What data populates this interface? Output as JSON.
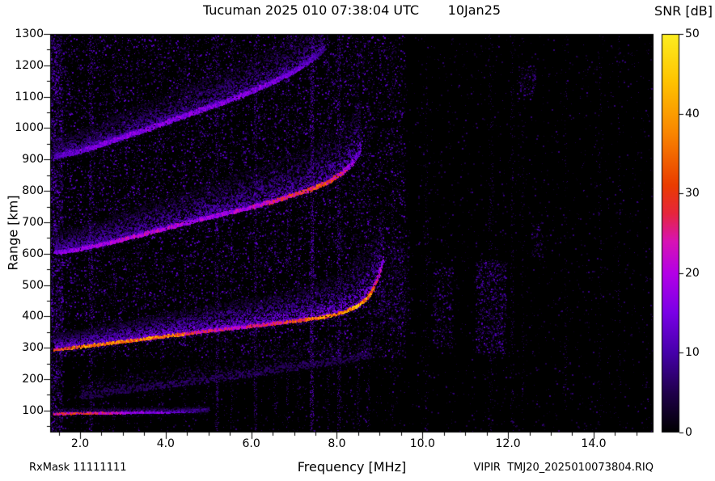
{
  "chart_data": {
    "type": "heatmap",
    "title": "Tucuman 2025 010 07:38:04 UTC       10Jan25",
    "station": "Tucuman",
    "timestamp_utc": "2025 010 07:38:04 UTC",
    "date": "10Jan25",
    "xlabel": "Frequency [MHz]",
    "ylabel": "Range [km]",
    "rx_mask": "RxMask 11111111",
    "instrument_file": "VIPIR  TMJ20_2025010073804.RIQ",
    "xlim": [
      1.3,
      15.4
    ],
    "ylim": [
      30,
      1300
    ],
    "xticks": [
      2,
      4,
      6,
      8,
      10,
      12,
      14
    ],
    "xtick_labels": [
      "2.0",
      "4.0",
      "6.0",
      "8.0",
      "10.0",
      "12.0",
      "14.0"
    ],
    "yticks": [
      100,
      200,
      300,
      400,
      500,
      600,
      700,
      800,
      900,
      1000,
      1100,
      1200,
      1300
    ],
    "grid": "dotted-black",
    "colorbar": {
      "label": "SNR [dB]",
      "min": 0,
      "max": 50,
      "ticks": [
        0,
        10,
        20,
        30,
        40,
        50
      ]
    },
    "palette_stops": [
      [
        0.0,
        "#000000"
      ],
      [
        0.1,
        "#20004c"
      ],
      [
        0.2,
        "#4600aa"
      ],
      [
        0.3,
        "#7a00e6"
      ],
      [
        0.4,
        "#b400e6"
      ],
      [
        0.48,
        "#d813b4"
      ],
      [
        0.55,
        "#e6263c"
      ],
      [
        0.62,
        "#ea3c00"
      ],
      [
        0.75,
        "#f98500"
      ],
      [
        0.88,
        "#ffc300"
      ],
      [
        1.0,
        "#fcee21"
      ]
    ],
    "seed": 20250110,
    "noise_regions": [
      {
        "x": [
          1.3,
          9.6
        ],
        "y": [
          270,
          1295
        ],
        "density": 0.085,
        "snr": [
          2,
          13
        ]
      },
      {
        "x": [
          1.3,
          9.6
        ],
        "y": [
          30,
          270
        ],
        "density": 0.018,
        "snr": [
          2,
          9
        ]
      },
      {
        "x": [
          9.6,
          15.4
        ],
        "y": [
          30,
          1295
        ],
        "density": 0.012,
        "snr": [
          2,
          8
        ]
      },
      {
        "x": [
          10.25,
          10.7
        ],
        "y": [
          300,
          560
        ],
        "density": 0.1,
        "snr": [
          3,
          11
        ]
      },
      {
        "x": [
          11.25,
          11.95
        ],
        "y": [
          280,
          580
        ],
        "density": 0.16,
        "snr": [
          3,
          12
        ]
      },
      {
        "x": [
          12.55,
          12.8
        ],
        "y": [
          590,
          700
        ],
        "density": 0.12,
        "snr": [
          3,
          10
        ]
      },
      {
        "x": [
          12.2,
          12.65
        ],
        "y": [
          1090,
          1200
        ],
        "density": 0.1,
        "snr": [
          3,
          10
        ]
      },
      {
        "x": [
          8.9,
          9.7
        ],
        "y": [
          350,
          640
        ],
        "density": 0.12,
        "snr": [
          2,
          10
        ]
      },
      {
        "x": [
          1.3,
          1.6
        ],
        "y": [
          30,
          1295
        ],
        "density": 0.22,
        "snr": [
          3,
          13
        ]
      }
    ],
    "rfi_lines": [
      {
        "mhz": 2.25,
        "half_width_mhz": 0.04,
        "density": 0.3,
        "snr": [
          3,
          13
        ],
        "y": [
          35,
          1295
        ]
      },
      {
        "mhz": 2.55,
        "half_width_mhz": 0.03,
        "density": 0.08,
        "snr": [
          2,
          9
        ],
        "y": [
          35,
          1295
        ]
      },
      {
        "mhz": 2.8,
        "half_width_mhz": 0.03,
        "density": 0.14,
        "snr": [
          2,
          10
        ],
        "y": [
          35,
          1295
        ]
      },
      {
        "mhz": 3.1,
        "half_width_mhz": 0.03,
        "density": 0.08,
        "snr": [
          2,
          9
        ],
        "y": [
          35,
          1295
        ]
      },
      {
        "mhz": 3.35,
        "half_width_mhz": 0.03,
        "density": 0.14,
        "snr": [
          2,
          10
        ],
        "y": [
          35,
          1295
        ]
      },
      {
        "mhz": 3.9,
        "half_width_mhz": 0.03,
        "density": 0.09,
        "snr": [
          2,
          9
        ],
        "y": [
          35,
          1295
        ]
      },
      {
        "mhz": 4.45,
        "half_width_mhz": 0.03,
        "density": 0.13,
        "snr": [
          2,
          10
        ],
        "y": [
          35,
          1295
        ]
      },
      {
        "mhz": 4.95,
        "half_width_mhz": 0.03,
        "density": 0.08,
        "snr": [
          2,
          9
        ],
        "y": [
          35,
          1295
        ]
      },
      {
        "mhz": 5.2,
        "half_width_mhz": 0.035,
        "density": 0.28,
        "snr": [
          3,
          12
        ],
        "y": [
          35,
          1295
        ]
      },
      {
        "mhz": 5.55,
        "half_width_mhz": 0.03,
        "density": 0.16,
        "snr": [
          2,
          10
        ],
        "y": [
          35,
          1295
        ]
      },
      {
        "mhz": 6.1,
        "half_width_mhz": 0.035,
        "density": 0.28,
        "snr": [
          3,
          12
        ],
        "y": [
          35,
          1295
        ]
      },
      {
        "mhz": 6.55,
        "half_width_mhz": 0.03,
        "density": 0.13,
        "snr": [
          2,
          10
        ],
        "y": [
          35,
          1295
        ]
      },
      {
        "mhz": 6.85,
        "half_width_mhz": 0.03,
        "density": 0.18,
        "snr": [
          2,
          10
        ],
        "y": [
          35,
          1295
        ]
      },
      {
        "mhz": 7.1,
        "half_width_mhz": 0.03,
        "density": 0.1,
        "snr": [
          2,
          9
        ],
        "y": [
          35,
          1295
        ]
      },
      {
        "mhz": 7.42,
        "half_width_mhz": 0.045,
        "density": 0.4,
        "snr": [
          4,
          15
        ],
        "y": [
          35,
          1295
        ]
      },
      {
        "mhz": 7.8,
        "half_width_mhz": 0.03,
        "density": 0.13,
        "snr": [
          2,
          10
        ],
        "y": [
          35,
          1295
        ]
      },
      {
        "mhz": 8.05,
        "half_width_mhz": 0.04,
        "density": 0.3,
        "snr": [
          3,
          12
        ],
        "y": [
          35,
          1295
        ]
      },
      {
        "mhz": 8.5,
        "half_width_mhz": 0.03,
        "density": 0.16,
        "snr": [
          2,
          10
        ],
        "y": [
          35,
          1295
        ]
      },
      {
        "mhz": 8.75,
        "half_width_mhz": 0.03,
        "density": 0.1,
        "snr": [
          2,
          9
        ],
        "y": [
          35,
          1295
        ]
      },
      {
        "mhz": 9.3,
        "half_width_mhz": 0.03,
        "density": 0.1,
        "snr": [
          2,
          8
        ],
        "y": [
          35,
          1295
        ]
      },
      {
        "mhz": 10.1,
        "half_width_mhz": 0.03,
        "density": 0.07,
        "snr": [
          2,
          8
        ],
        "y": [
          35,
          1295
        ]
      },
      {
        "mhz": 11.6,
        "half_width_mhz": 0.05,
        "density": 0.09,
        "snr": [
          2,
          8
        ],
        "y": [
          35,
          1295
        ]
      },
      {
        "mhz": 12.1,
        "half_width_mhz": 0.04,
        "density": 0.08,
        "snr": [
          2,
          8
        ],
        "y": [
          35,
          1295
        ]
      },
      {
        "mhz": 12.35,
        "half_width_mhz": 0.03,
        "density": 0.06,
        "snr": [
          2,
          8
        ],
        "y": [
          35,
          1295
        ]
      },
      {
        "mhz": 13.35,
        "half_width_mhz": 0.03,
        "density": 0.06,
        "snr": [
          2,
          8
        ],
        "y": [
          35,
          1295
        ]
      },
      {
        "mhz": 14.15,
        "half_width_mhz": 0.03,
        "density": 0.05,
        "snr": [
          2,
          8
        ],
        "y": [
          35,
          1295
        ]
      },
      {
        "mhz": 14.6,
        "half_width_mhz": 0.03,
        "density": 0.05,
        "snr": [
          2,
          8
        ],
        "y": [
          35,
          1295
        ]
      }
    ],
    "echo_traces": [
      {
        "name": "diffuse-low-band",
        "points": [
          [
            2.0,
            135
          ],
          [
            3,
            155
          ],
          [
            4,
            172
          ],
          [
            5,
            190
          ],
          [
            6,
            208
          ],
          [
            7,
            228
          ],
          [
            8,
            248
          ],
          [
            8.8,
            268
          ]
        ],
        "snr": [
          [
            2.0,
            5
          ],
          [
            5,
            6
          ],
          [
            8.8,
            5
          ]
        ],
        "spread_km": [
          [
            2.0,
            40
          ],
          [
            8.8,
            60
          ]
        ],
        "thickness_km": 20,
        "spread_snr": 5,
        "core_dots": 1,
        "spread_dots": 1
      },
      {
        "name": "F-region-3rd-hop",
        "points": [
          [
            1.4,
            903
          ],
          [
            2,
            920
          ],
          [
            2.5,
            942
          ],
          [
            3,
            965
          ],
          [
            3.5,
            988
          ],
          [
            4,
            1012
          ],
          [
            4.5,
            1036
          ],
          [
            5,
            1060
          ],
          [
            5.5,
            1084
          ],
          [
            6,
            1110
          ],
          [
            6.5,
            1140
          ],
          [
            7,
            1175
          ],
          [
            7.4,
            1210
          ],
          [
            7.7,
            1248
          ]
        ],
        "snr": [
          [
            1.4,
            11
          ],
          [
            2,
            14
          ],
          [
            3,
            16
          ],
          [
            4,
            16
          ],
          [
            5,
            15
          ],
          [
            6,
            16
          ],
          [
            7,
            14
          ],
          [
            7.7,
            9
          ]
        ],
        "spread_km": [
          [
            1.4,
            55
          ],
          [
            4,
            85
          ],
          [
            7.7,
            110
          ]
        ],
        "thickness_km": 14,
        "spread_snr": 10,
        "core_dots": 3,
        "spread_dots": 6
      },
      {
        "name": "F-region-2nd-hop",
        "points": [
          [
            1.4,
            598
          ],
          [
            2,
            610
          ],
          [
            2.5,
            625
          ],
          [
            3,
            641
          ],
          [
            3.5,
            658
          ],
          [
            4,
            676
          ],
          [
            4.5,
            694
          ],
          [
            5,
            711
          ],
          [
            5.5,
            727
          ],
          [
            6,
            744
          ],
          [
            6.5,
            762
          ],
          [
            7,
            783
          ],
          [
            7.4,
            801
          ],
          [
            7.8,
            824
          ],
          [
            8.1,
            850
          ],
          [
            8.35,
            882
          ],
          [
            8.55,
            922
          ]
        ],
        "snr": [
          [
            1.4,
            15
          ],
          [
            2,
            18
          ],
          [
            3,
            21
          ],
          [
            4,
            21
          ],
          [
            5,
            18
          ],
          [
            6,
            21
          ],
          [
            6.8,
            27
          ],
          [
            7.2,
            30
          ],
          [
            7.8,
            30
          ],
          [
            8.1,
            25
          ],
          [
            8.35,
            18
          ],
          [
            8.55,
            12
          ]
        ],
        "spread_km": [
          [
            1.4,
            60
          ],
          [
            4,
            95
          ],
          [
            6,
            115
          ],
          [
            8,
            145
          ],
          [
            8.55,
            160
          ]
        ],
        "thickness_km": 11,
        "spread_snr": 12,
        "core_dots": 3,
        "spread_dots": 7
      },
      {
        "name": "E-layer",
        "points": [
          [
            1.4,
            88
          ],
          [
            2.5,
            90
          ],
          [
            3.5,
            92
          ],
          [
            4.3,
            94
          ],
          [
            5.0,
            98
          ]
        ],
        "snr": [
          [
            1.4,
            26
          ],
          [
            2.2,
            28
          ],
          [
            3.0,
            20
          ],
          [
            4.0,
            14
          ],
          [
            4.6,
            10
          ],
          [
            5.0,
            6
          ]
        ],
        "spread_km": [
          [
            1.4,
            14
          ],
          [
            5.0,
            10
          ]
        ],
        "thickness_km": 6,
        "spread_snr": 8,
        "core_dots": 2,
        "spread_dots": 2
      },
      {
        "name": "F-region-1st-hop",
        "points": [
          [
            1.4,
            292
          ],
          [
            2,
            300
          ],
          [
            3,
            317
          ],
          [
            4,
            334
          ],
          [
            5,
            351
          ],
          [
            6,
            366
          ],
          [
            7,
            382
          ],
          [
            7.5,
            391
          ],
          [
            7.9,
            401
          ],
          [
            8.2,
            413
          ],
          [
            8.45,
            428
          ],
          [
            8.65,
            448
          ],
          [
            8.8,
            472
          ],
          [
            8.92,
            505
          ],
          [
            9.0,
            540
          ],
          [
            9.08,
            578
          ]
        ],
        "snr": [
          [
            1.4,
            30
          ],
          [
            2,
            36
          ],
          [
            3,
            37
          ],
          [
            4.2,
            36
          ],
          [
            4.8,
            27
          ],
          [
            5.5,
            23
          ],
          [
            6.3,
            25
          ],
          [
            7.0,
            31
          ],
          [
            7.5,
            36
          ],
          [
            8.0,
            38
          ],
          [
            8.3,
            41
          ],
          [
            8.6,
            41
          ],
          [
            8.8,
            34
          ],
          [
            8.95,
            24
          ],
          [
            9.08,
            14
          ]
        ],
        "spread_km": [
          [
            1.4,
            45
          ],
          [
            4,
            70
          ],
          [
            7,
            95
          ],
          [
            8.5,
            140
          ],
          [
            9.08,
            180
          ]
        ],
        "thickness_km": 8,
        "spread_snr": 15,
        "core_dots": 3,
        "spread_dots": 7
      }
    ]
  }
}
